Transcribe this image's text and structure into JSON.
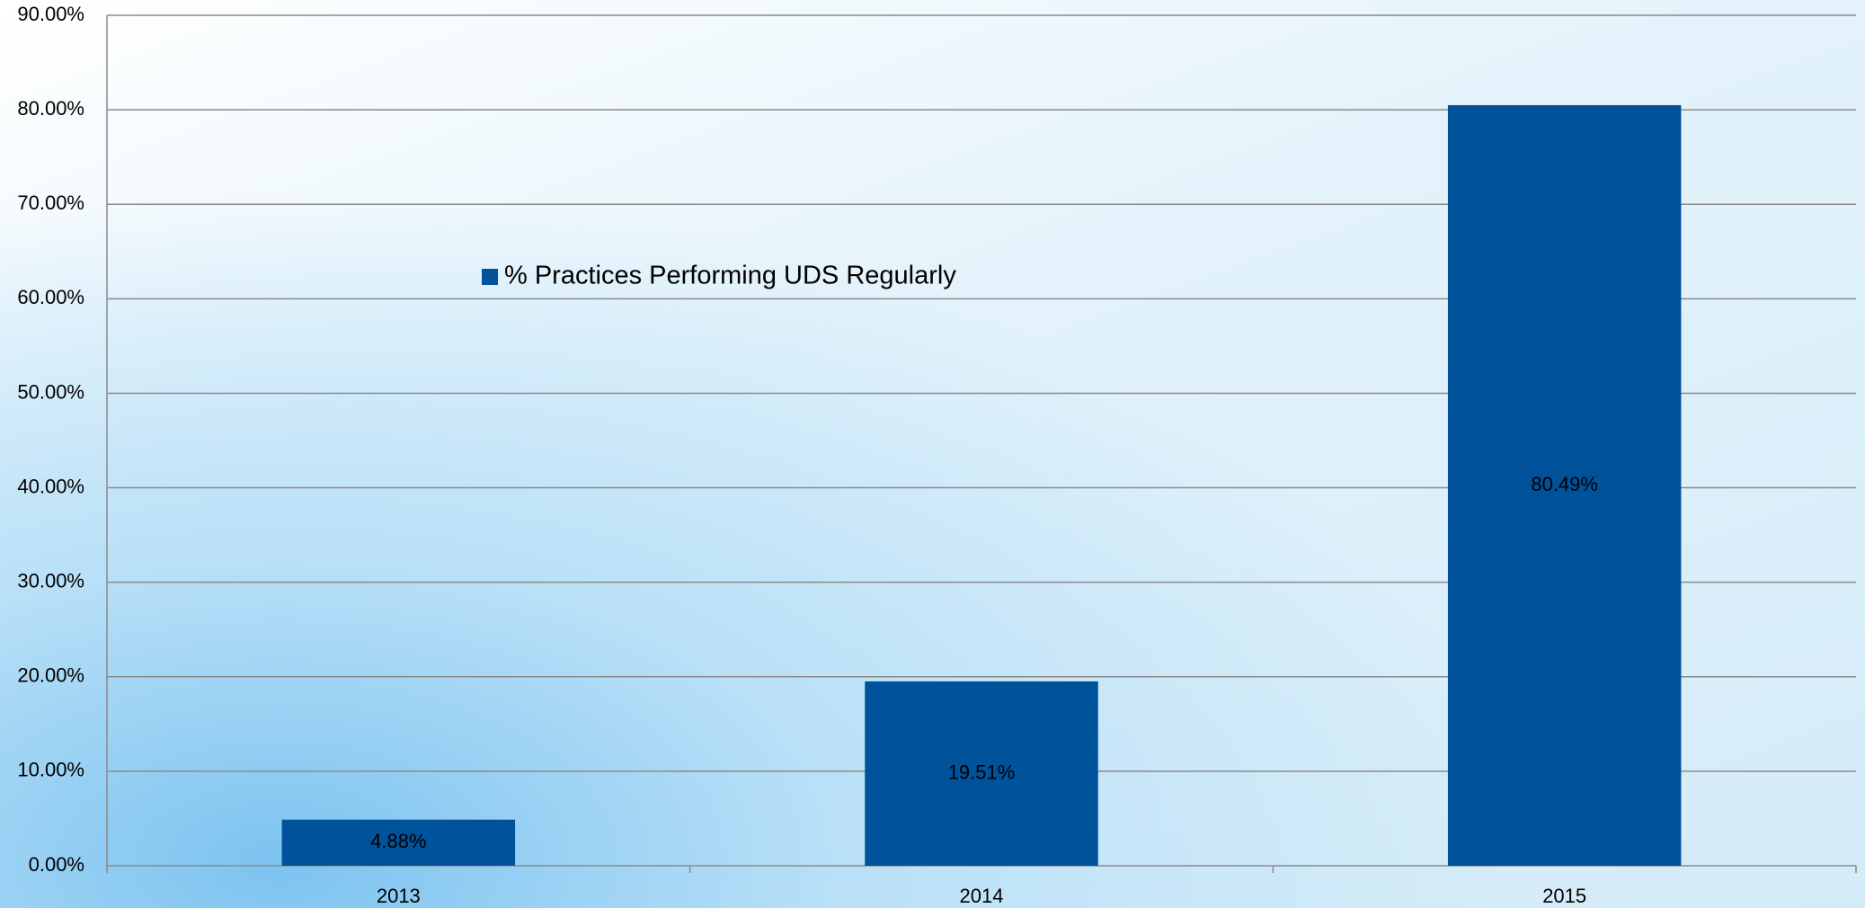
{
  "chart_data": {
    "type": "bar",
    "categories": [
      "2013",
      "2014",
      "2015"
    ],
    "series": [
      {
        "name": "% Practices Performing UDS Regularly",
        "color": "#00529b",
        "values": [
          4.88,
          19.51,
          80.49
        ],
        "value_labels": [
          "4.88%",
          "19.51%",
          "80.49%"
        ]
      }
    ],
    "ylim": [
      0,
      90
    ],
    "yticks": [
      {
        "value": 0,
        "label": "0.00%"
      },
      {
        "value": 10,
        "label": "10.00%"
      },
      {
        "value": 20,
        "label": "20.00%"
      },
      {
        "value": 30,
        "label": "30.00%"
      },
      {
        "value": 40,
        "label": "40.00%"
      },
      {
        "value": 50,
        "label": "50.00%"
      },
      {
        "value": 60,
        "label": "60.00%"
      },
      {
        "value": 70,
        "label": "70.00%"
      },
      {
        "value": 80,
        "label": "80.00%"
      },
      {
        "value": 90,
        "label": "90.00%"
      }
    ],
    "grid": true,
    "legend": "upper left"
  }
}
